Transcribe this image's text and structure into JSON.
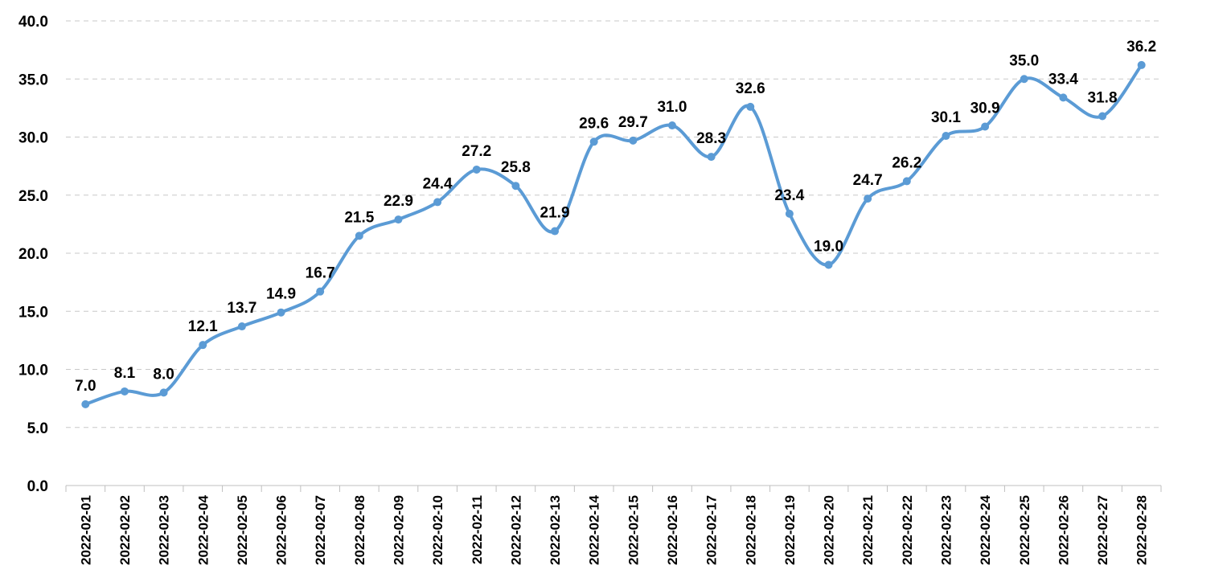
{
  "chart_data": {
    "type": "line",
    "title": "",
    "xlabel": "",
    "ylabel": "",
    "ylim": [
      0,
      40
    ],
    "ytick_step": 5,
    "grid": true,
    "legend": "none",
    "smooth": true,
    "series_color": "#5b9bd5",
    "x": [
      "2022-02-01",
      "2022-02-02",
      "2022-02-03",
      "2022-02-04",
      "2022-02-05",
      "2022-02-06",
      "2022-02-07",
      "2022-02-08",
      "2022-02-09",
      "2022-02-10",
      "2022-02-11",
      "2022-02-12",
      "2022-02-13",
      "2022-02-14",
      "2022-02-15",
      "2022-02-16",
      "2022-02-17",
      "2022-02-18",
      "2022-02-19",
      "2022-02-20",
      "2022-02-21",
      "2022-02-22",
      "2022-02-23",
      "2022-02-24",
      "2022-02-25",
      "2022-02-26",
      "2022-02-27",
      "2022-02-28"
    ],
    "series": [
      {
        "values": [
          7.0,
          8.1,
          8.0,
          12.1,
          13.7,
          14.9,
          16.7,
          21.5,
          22.9,
          24.4,
          27.2,
          25.8,
          21.9,
          29.6,
          29.7,
          31.0,
          28.3,
          32.6,
          23.4,
          19.0,
          24.7,
          26.2,
          30.1,
          30.9,
          35.0,
          33.4,
          31.8,
          36.2
        ]
      }
    ]
  }
}
